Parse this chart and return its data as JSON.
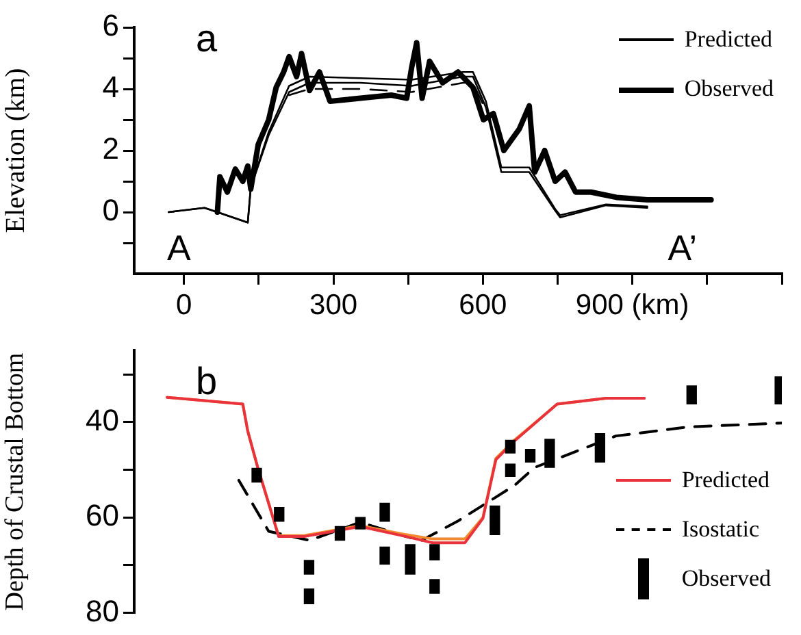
{
  "chart_data": [
    {
      "type": "line",
      "title": "a",
      "ylabel": "Elevation (km)",
      "xlim": [
        -100,
        1200
      ],
      "xticks": [
        0,
        {
          "value": 150,
          "label": null
        },
        300,
        {
          "value": 450,
          "label": null
        },
        600,
        {
          "value": 750,
          "label": null
        },
        {
          "value": 900,
          "label": "900 (km)"
        },
        {
          "value": 1050,
          "label": null
        },
        {
          "value": 1200,
          "label": null
        }
      ],
      "ylim": [
        -2,
        6
      ],
      "yticks": [
        {
          "value": -1,
          "label": null
        },
        0,
        {
          "value": 1,
          "label": null
        },
        2,
        {
          "value": 3,
          "label": null
        },
        4,
        {
          "value": 5,
          "label": null
        },
        6
      ],
      "legend": "top right",
      "grid": false,
      "annotations": [
        "A",
        "A’"
      ],
      "series": [
        {
          "name": "Predicted",
          "color": "#000000",
          "line_style": "solid",
          "x": [
            -31,
            41,
            67,
            128,
            134,
            170,
            211,
            252,
            354,
            457,
            560,
            580,
            606,
            637,
            693,
            745,
            755,
            847,
            930
          ],
          "values": [
            0,
            0.14,
            0,
            -0.34,
            0.8,
            2.5,
            3.9,
            4.2,
            4.2,
            4.1,
            4.4,
            4.4,
            3.4,
            1.3,
            1.3,
            0.05,
            -0.17,
            0.22,
            0.14
          ]
        },
        {
          "color": "#000000",
          "line_style": "solid",
          "x": [
            -31,
            41,
            67,
            128,
            134,
            170,
            211,
            252,
            354,
            457,
            560,
            580,
            606,
            637,
            693,
            745,
            755,
            847,
            930
          ],
          "values": [
            0,
            0.14,
            0,
            -0.34,
            0.8,
            2.6,
            4.1,
            4.4,
            4.35,
            4.3,
            4.55,
            4.55,
            3.6,
            1.45,
            1.45,
            0.1,
            -0.1,
            0.25,
            0.18
          ]
        },
        {
          "color": "#000000",
          "line_style": "dashed",
          "x": [
            211,
            252,
            354,
            457,
            560,
            580,
            606
          ],
          "values": [
            3.8,
            4.0,
            4.0,
            3.9,
            4.2,
            4.2,
            3.3
          ]
        },
        {
          "name": "Observed",
          "color": "#000000",
          "line_style": "solid",
          "x": [
            67,
            72,
            87,
            103,
            118,
            128,
            134,
            149,
            170,
            185,
            200,
            211,
            226,
            236,
            252,
            272,
            293,
            354,
            416,
            447,
            457,
            467,
            478,
            493,
            519,
            550,
            580,
            601,
            621,
            642,
            673,
            693,
            704,
            724,
            745,
            765,
            786,
            817,
            868,
            930,
            1002,
            1058
          ],
          "values": [
            0,
            1.15,
            0.65,
            1.4,
            1.0,
            1.5,
            0.75,
            2.2,
            3.0,
            4.05,
            4.55,
            5.05,
            4.4,
            5.15,
            3.95,
            4.55,
            3.6,
            3.7,
            3.8,
            3.7,
            4.7,
            5.5,
            3.7,
            4.9,
            4.2,
            4.55,
            4.05,
            3.0,
            3.2,
            2.0,
            2.7,
            3.45,
            1.3,
            2.0,
            1.0,
            1.3,
            0.65,
            0.65,
            0.48,
            0.4,
            0.4,
            0.4
          ]
        }
      ]
    },
    {
      "type": "line",
      "title": "b",
      "ylabel": "Depth of Crustal Bottom",
      "xlim": [
        -100,
        1200
      ],
      "tick_labels": "y",
      "ylim": [
        80,
        25
      ],
      "yticks": [
        {
          "value": 30,
          "label": null
        },
        40,
        {
          "value": 50,
          "label": null
        },
        60,
        {
          "value": 70,
          "label": null
        },
        80
      ],
      "legend": "right",
      "grid": false,
      "series": [
        {
          "name": "Predicted",
          "color": "#e8323c",
          "line_style": "solid",
          "x": [
            -34,
            118,
            128,
            148,
            190,
            241,
            354,
            446,
            499,
            564,
            600,
            626,
            663,
            749,
            847,
            924
          ],
          "values": [
            34.8,
            36.2,
            41.9,
            49.5,
            64.0,
            64.0,
            61.9,
            64.0,
            65.3,
            65.3,
            60.2,
            47.9,
            44.0,
            36.2,
            35.0,
            35.0
          ]
        },
        {
          "color": "#f28a30",
          "line_style": "solid",
          "x": [
            -34,
            118,
            128,
            148,
            190,
            241,
            354,
            446,
            499,
            564,
            600,
            626,
            663,
            749,
            847,
            924
          ],
          "values": [
            34.8,
            36.2,
            41.9,
            49.5,
            63.8,
            63.8,
            61.7,
            63.6,
            64.5,
            64.5,
            60.0,
            47.6,
            43.8,
            36.2,
            35.0,
            35.0
          ]
        },
        {
          "name": "Isostatic",
          "color": "#000000",
          "line_style": "dashed",
          "x": [
            110,
            170,
            252,
            354,
            446,
            477,
            549,
            663,
            704,
            867,
            1012,
            1200
          ],
          "values": [
            52.2,
            62.9,
            64.8,
            61.0,
            64.0,
            64.8,
            60.8,
            53.3,
            49.5,
            42.9,
            41.0,
            40.2
          ]
        },
        {
          "name": "Observed",
          "type": "bar",
          "color": "#000000",
          "x": [
            146,
            191,
            251,
            313,
            354,
            403,
            454,
            503,
            624,
            655,
            695,
            734,
            835,
            1019,
            1196
          ],
          "base": [
            49.7,
            57.9,
            69.0,
            61.9,
            60.0,
            57.0,
            65.7,
            65.7,
            57.6,
            43.8,
            45.7,
            43.6,
            42.4,
            32.4,
            30.5
          ],
          "values": [
            2.9,
            2.9,
            2.9,
            2.9,
            2.4,
            3.8,
            6.2,
            3.2,
            6.0,
            2.7,
            2.7,
            5.9,
            6.0,
            3.8,
            5.7
          ]
        },
        {
          "type": "bar",
          "color": "#000000",
          "x": [
            251,
            403,
            503,
            655
          ],
          "base": [
            75.0,
            66.2,
            73.0,
            48.8
          ],
          "values": [
            3.1,
            3.6,
            2.9,
            2.6
          ]
        }
      ]
    }
  ]
}
